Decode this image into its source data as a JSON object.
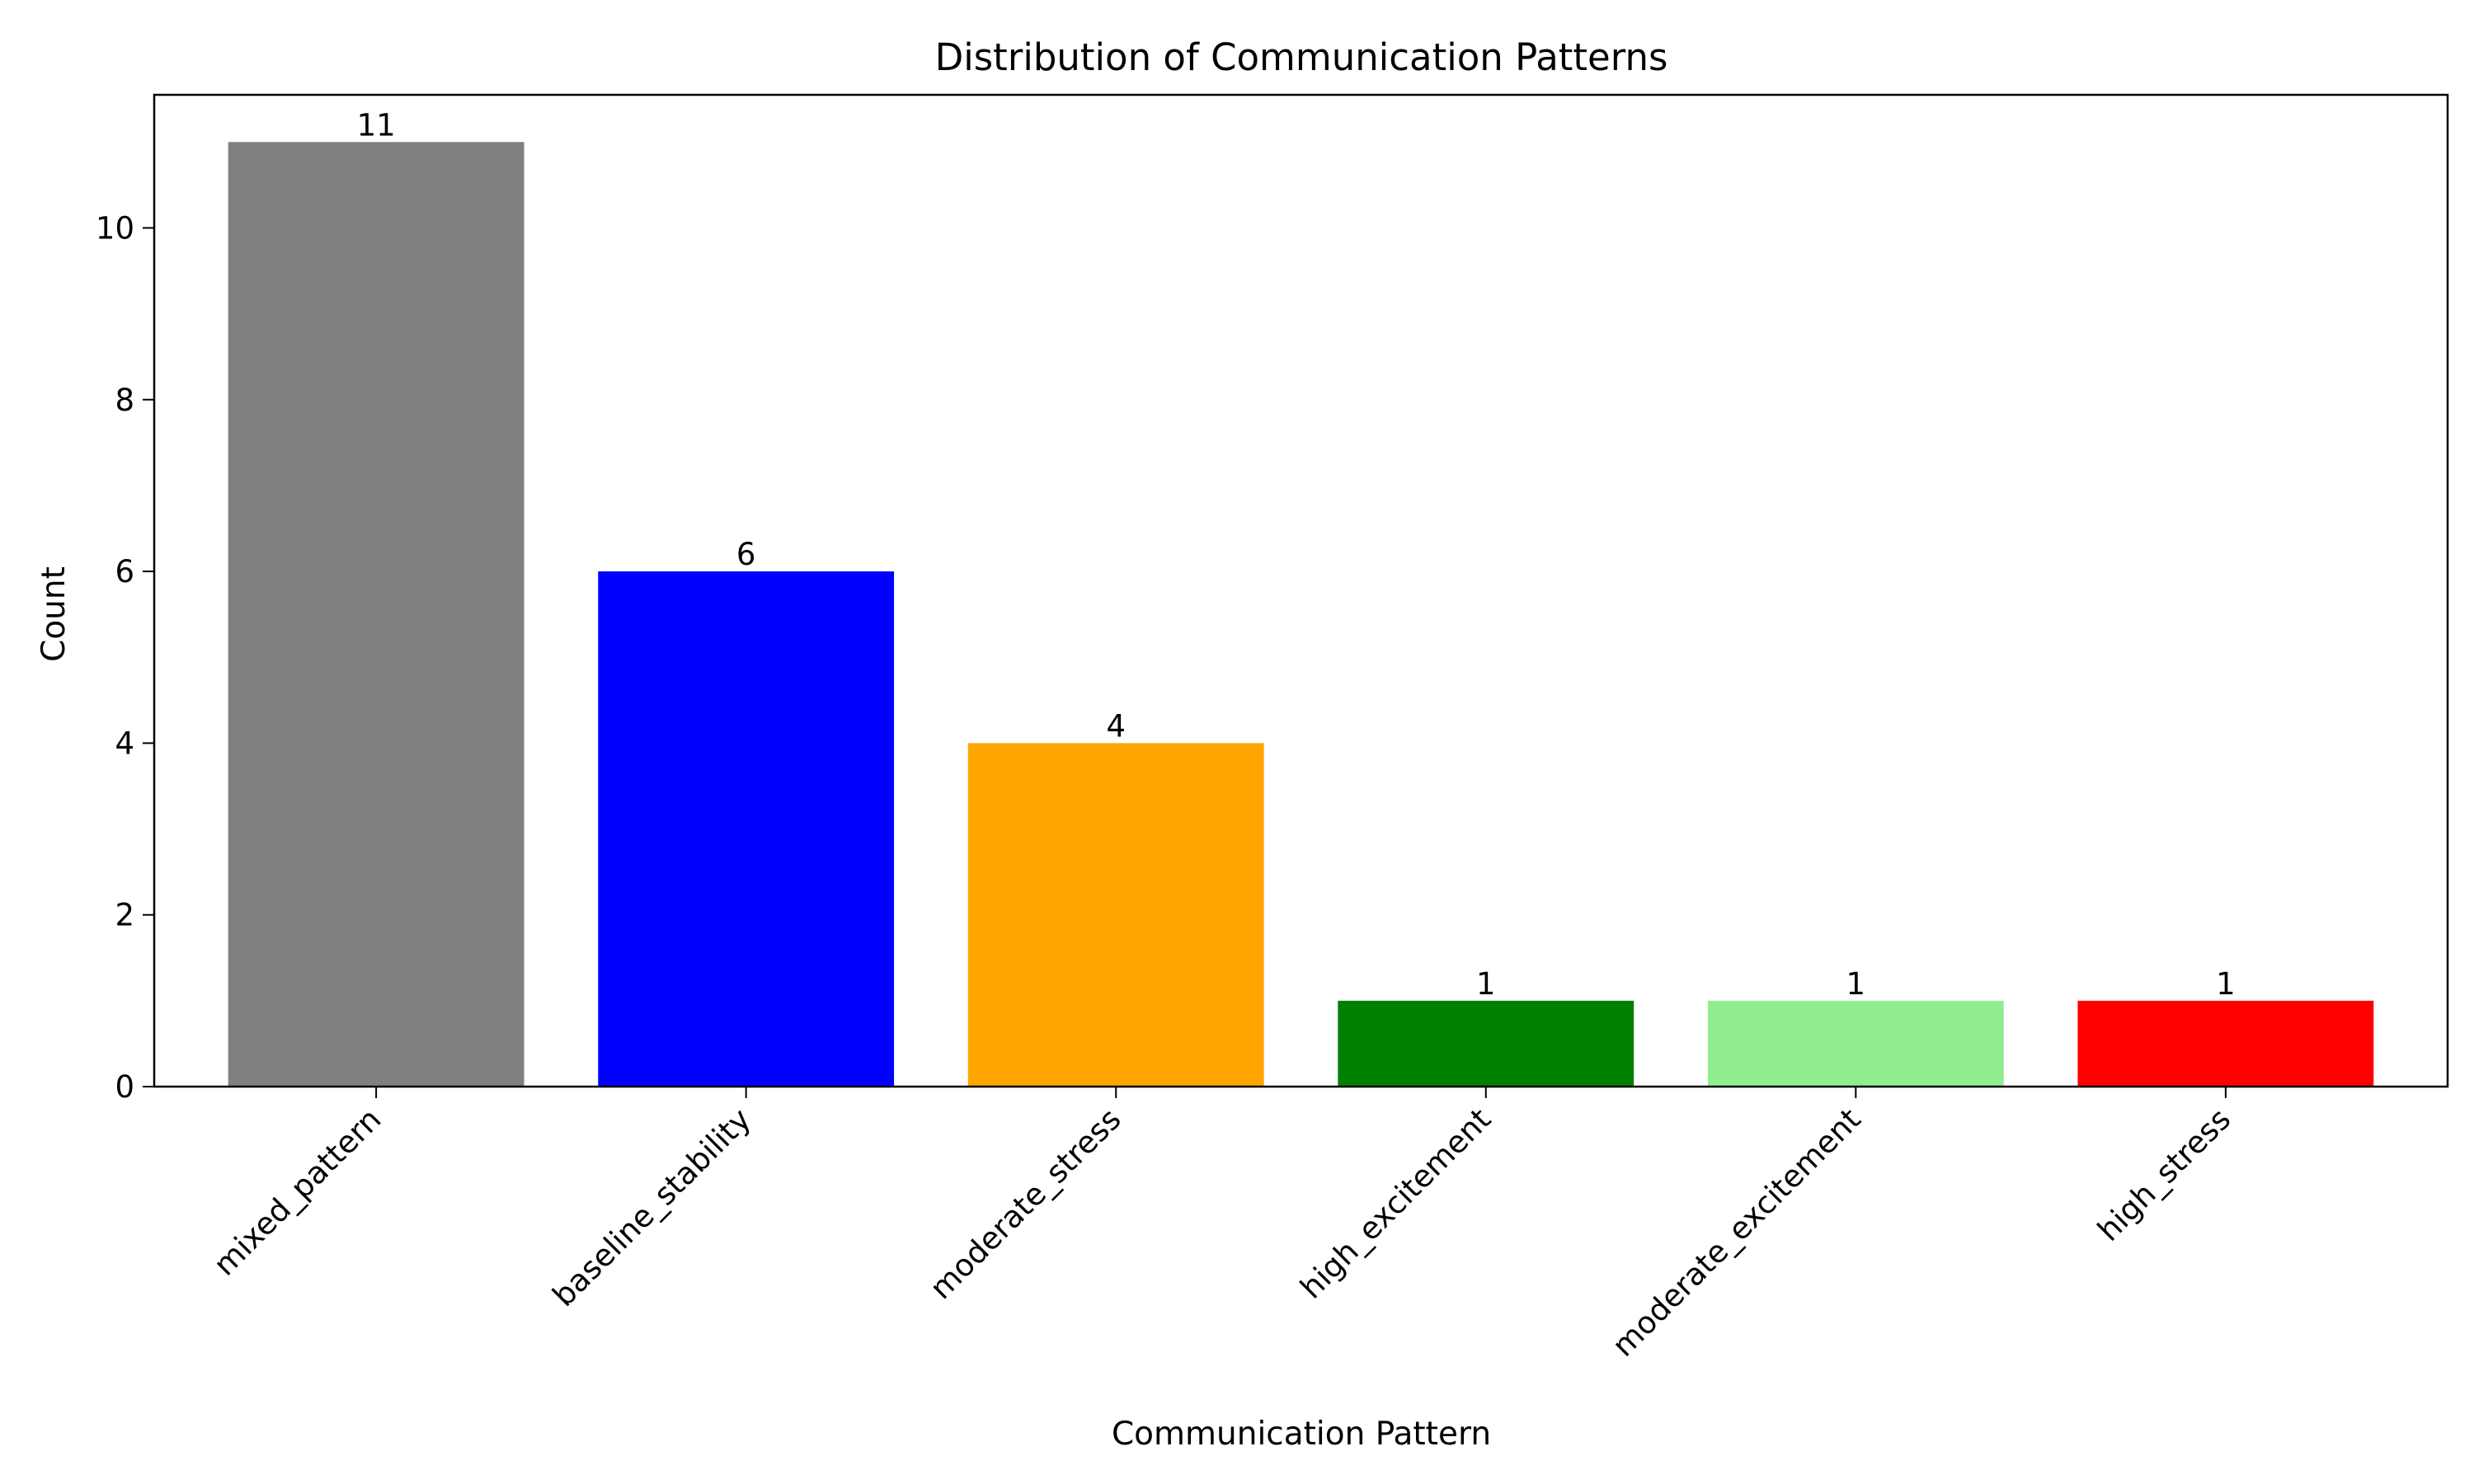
{
  "chart_data": {
    "type": "bar",
    "title": "Distribution of Communication Patterns",
    "xlabel": "Communication Pattern",
    "ylabel": "Count",
    "categories": [
      "mixed_pattern",
      "baseline_stability",
      "moderate_stress",
      "high_excitement",
      "moderate_excitement",
      "high_stress"
    ],
    "values": [
      11,
      6,
      4,
      1,
      1,
      1
    ],
    "colors": [
      "#808080",
      "#0000ff",
      "#ffa500",
      "#008000",
      "#90ee90",
      "#ff0000"
    ],
    "ylim": [
      0,
      11.55
    ],
    "yticks": [
      0,
      2,
      4,
      6,
      8,
      10
    ],
    "grid": false,
    "legend": "none"
  }
}
